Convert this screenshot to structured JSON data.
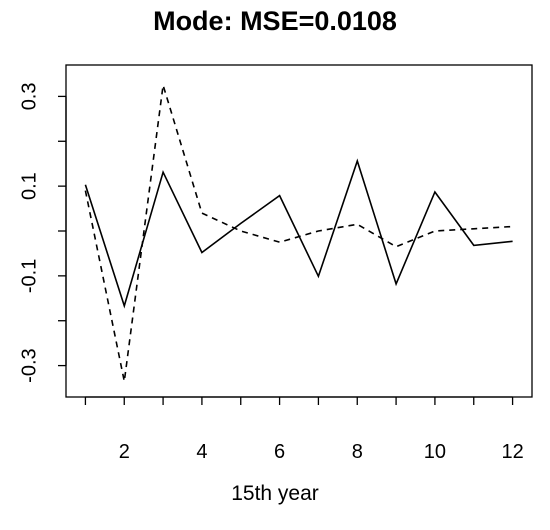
{
  "chart_data": {
    "type": "line",
    "title": "Mode: MSE=0.0108",
    "xlabel": "15th year",
    "ylabel": "",
    "x": [
      1,
      2,
      3,
      4,
      5,
      6,
      7,
      8,
      9,
      10,
      11,
      12
    ],
    "xlim": [
      0.5,
      12.5
    ],
    "ylim": [
      -0.37,
      0.37
    ],
    "x_ticks": [
      2,
      4,
      6,
      8,
      10,
      12
    ],
    "y_ticks": [
      -0.3,
      -0.1,
      0.1,
      0.3
    ],
    "x_tick_labels": [
      "2",
      "4",
      "6",
      "8",
      "10",
      "12"
    ],
    "y_tick_labels": [
      "-0.3",
      "-0.1",
      "0.1",
      "0.3"
    ],
    "grid": false,
    "series": [
      {
        "style": "solid",
        "color": "#000000",
        "values": [
          0.103,
          -0.167,
          0.131,
          -0.048,
          0.017,
          0.079,
          -0.101,
          0.156,
          -0.118,
          0.087,
          -0.032,
          -0.023
        ]
      },
      {
        "style": "dashed",
        "color": "#000000",
        "values": [
          0.09,
          -0.335,
          0.325,
          0.04,
          0.0,
          -0.025,
          0.0,
          0.015,
          -0.035,
          0.0,
          0.005,
          0.01
        ]
      }
    ]
  }
}
